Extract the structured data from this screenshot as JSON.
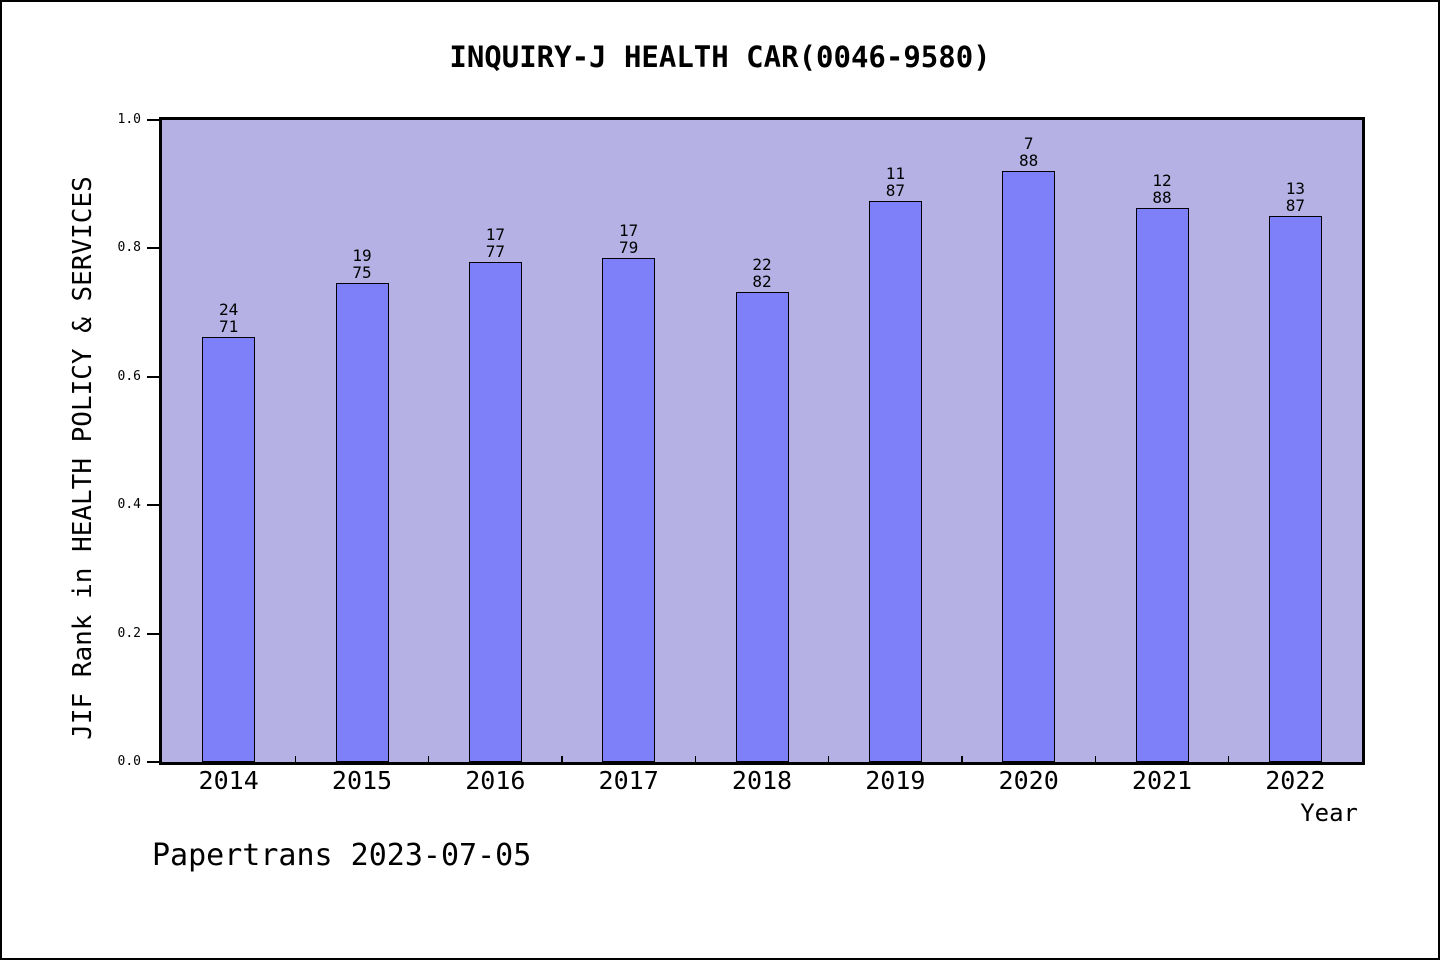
{
  "chart_data": {
    "type": "bar",
    "title": "INQUIRY-J HEALTH CAR(0046-9580)",
    "xlabel": "Year",
    "ylabel": "JIF Rank in HEALTH POLICY & SERVICES",
    "ylim": [
      0.0,
      1.0
    ],
    "yticks": [
      "0.0",
      "0.2",
      "0.4",
      "0.6",
      "0.8",
      "1.0"
    ],
    "grid": false,
    "legend_position": "none",
    "categories": [
      "2014",
      "2015",
      "2016",
      "2017",
      "2018",
      "2019",
      "2020",
      "2021",
      "2022"
    ],
    "points": [
      {
        "year": "2014",
        "rank": 24,
        "total": 71,
        "percentile": 0.662
      },
      {
        "year": "2015",
        "rank": 19,
        "total": 75,
        "percentile": 0.7467
      },
      {
        "year": "2016",
        "rank": 17,
        "total": 77,
        "percentile": 0.7792
      },
      {
        "year": "2017",
        "rank": 17,
        "total": 79,
        "percentile": 0.7848
      },
      {
        "year": "2018",
        "rank": 22,
        "total": 82,
        "percentile": 0.7317
      },
      {
        "year": "2019",
        "rank": 11,
        "total": 87,
        "percentile": 0.8736
      },
      {
        "year": "2020",
        "rank": 7,
        "total": 88,
        "percentile": 0.9205
      },
      {
        "year": "2021",
        "rank": 12,
        "total": 88,
        "percentile": 0.8636
      },
      {
        "year": "2022",
        "rank": 13,
        "total": 87,
        "percentile": 0.8506
      }
    ],
    "colors": {
      "bar_fill": "#7e80fa",
      "bar_border": "#000000",
      "plot_background": "#b5b1e4",
      "canvas_background": "#ffffff",
      "axis": "#000000",
      "text": "#000000"
    }
  },
  "footer": {
    "watermark": "Papertrans 2023-07-05"
  }
}
